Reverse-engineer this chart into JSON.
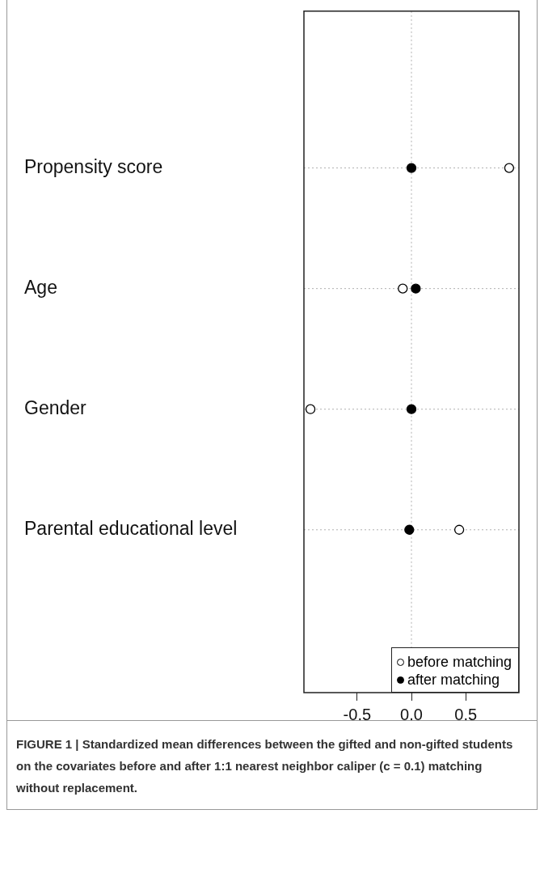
{
  "chart_data": {
    "type": "scatter",
    "categories": [
      "Propensity score",
      "Age",
      "Gender",
      "Parental educational level"
    ],
    "series": [
      {
        "name": "before matching",
        "color": "#ffffff",
        "marker": "circle",
        "values": [
          0.9,
          -0.08,
          -0.93,
          0.44
        ]
      },
      {
        "name": "after matching",
        "color": "#000000",
        "marker": "circle",
        "values": [
          0,
          0.04,
          0,
          -0.02
        ]
      }
    ],
    "orientation": "horizontal",
    "xlim": [
      -0.99,
      0.99
    ],
    "xticks": [
      -0.5,
      {
        "value": 0,
        "label": "0.0"
      },
      0.5
    ],
    "grid": "y",
    "legend": "bottom right",
    "ref_lines": [
      {
        "axis": "x",
        "value": 0,
        "line_style": "dotted",
        "color": "#b0b0b0"
      }
    ],
    "annotations": [
      "FIGURE 1 | Standardized mean differences between the gifted and non-gifted students on the covariates before and after 1:1 nearest neighbor caliper (c = 0.1) matching without replacement."
    ]
  }
}
